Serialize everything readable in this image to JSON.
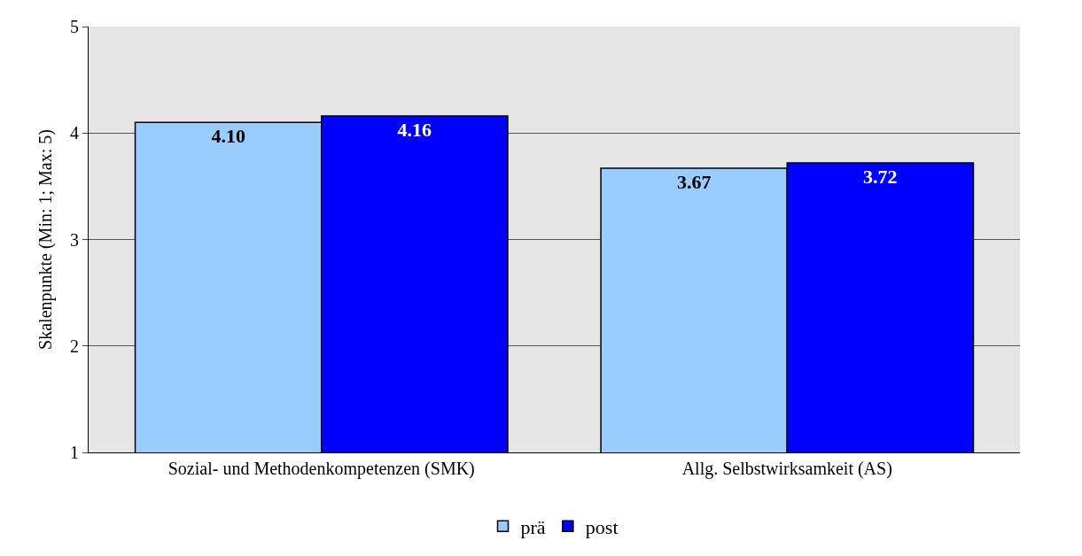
{
  "chart_data": {
    "type": "bar",
    "ylabel": "Skalenpunkte (Min: 1; Max: 5)",
    "categories": [
      "Sozial- und Methodenkompetenzen (SMK)",
      "Allg. Selbstwirksamkeit (AS)"
    ],
    "series": [
      {
        "name": "prä",
        "color": "#99ccff",
        "values": [
          4.1,
          3.67
        ],
        "value_labels": [
          "4.10",
          "3.67"
        ]
      },
      {
        "name": "post",
        "color": "#0000ff",
        "values": [
          4.16,
          3.72
        ],
        "value_labels": [
          "4.16",
          "3.72"
        ]
      }
    ],
    "ylim": [
      1,
      5
    ],
    "yticks": [
      1,
      2,
      3,
      4,
      5
    ],
    "grid": "y",
    "legend": "bottom"
  }
}
